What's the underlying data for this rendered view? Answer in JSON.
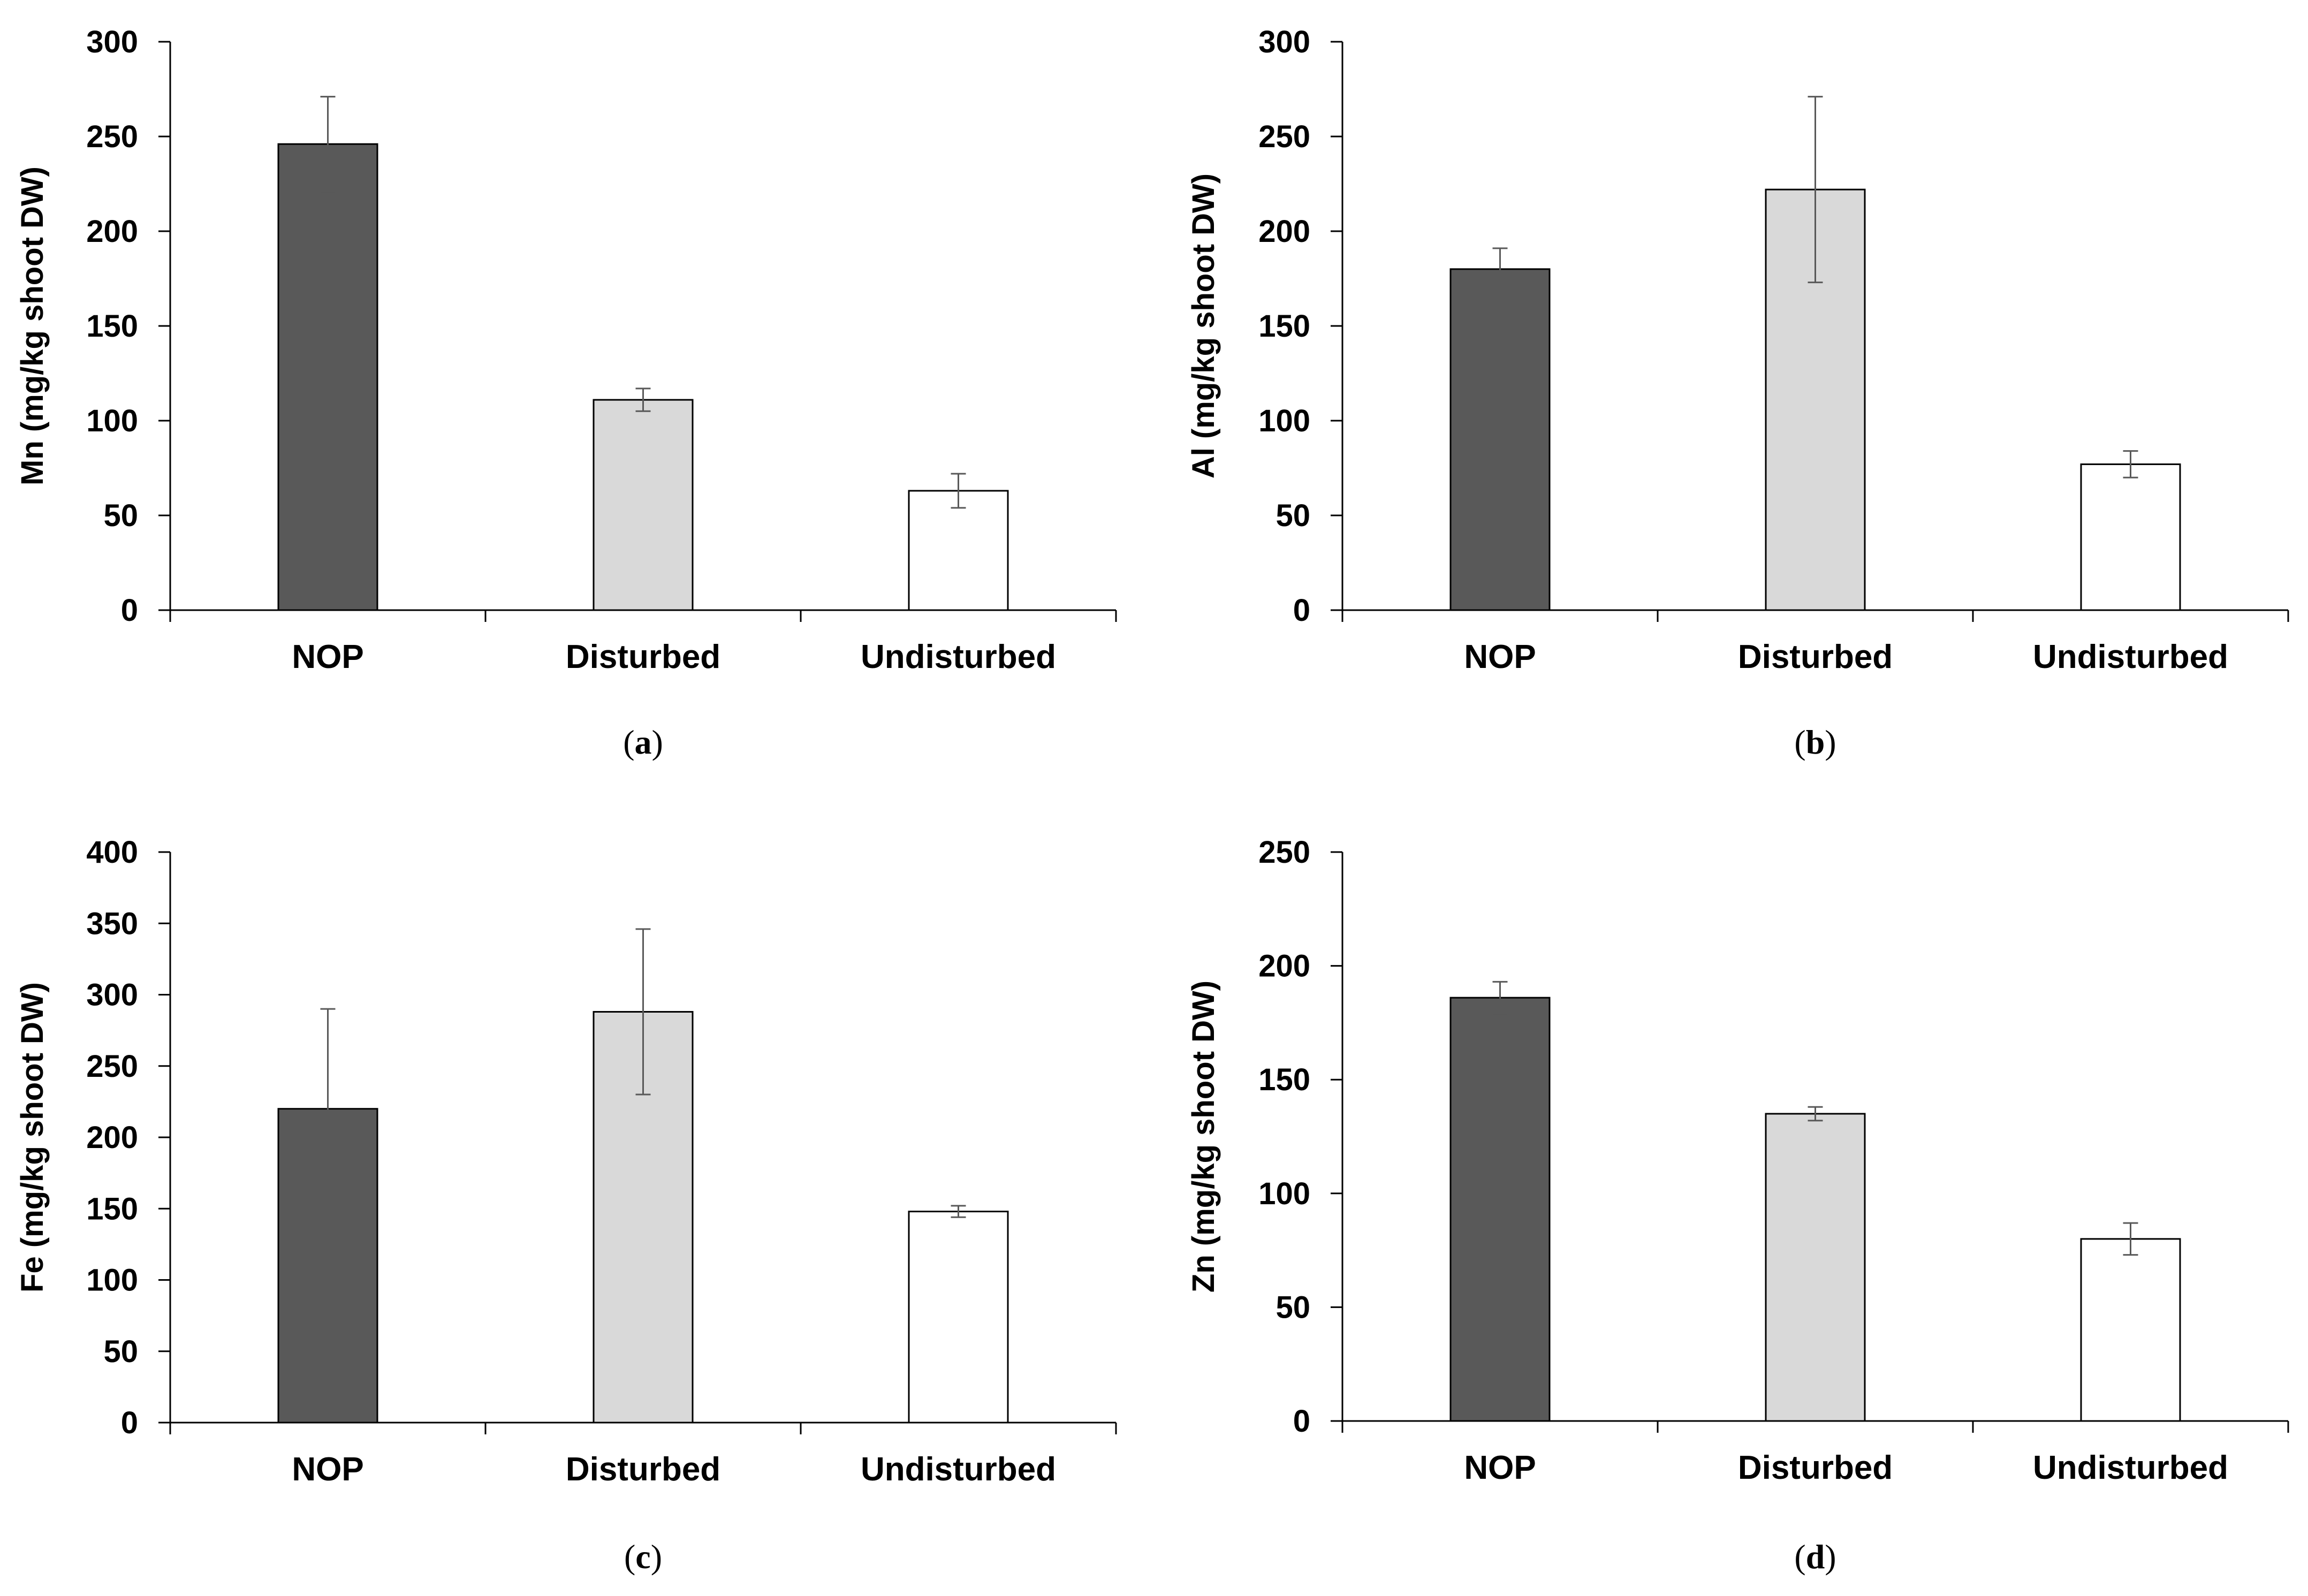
{
  "chart_data": [
    {
      "type": "bar",
      "panel_label": "a",
      "ylabel": "Mn (mg/kg shoot DW)",
      "categories": [
        "NOP",
        "Disturbed",
        "Undisturbed"
      ],
      "values": [
        246,
        111,
        63
      ],
      "errors": [
        25,
        6,
        9
      ],
      "ylim": [
        0,
        300
      ],
      "yticks": [
        0,
        50,
        100,
        150,
        200,
        250,
        300
      ],
      "yticks_text": [
        "0",
        "50",
        "100",
        "150",
        "200",
        "250",
        "300"
      ],
      "bar_colors": [
        "#595959",
        "#d9d9d9",
        "#ffffff"
      ]
    },
    {
      "type": "bar",
      "panel_label": "b",
      "ylabel": "Al (mg/kg shoot DW)",
      "categories": [
        "NOP",
        "Disturbed",
        "Undisturbed"
      ],
      "values": [
        180,
        222,
        77
      ],
      "errors": [
        11,
        49,
        7
      ],
      "ylim": [
        0,
        300
      ],
      "yticks": [
        0,
        50,
        100,
        150,
        200,
        250,
        300
      ],
      "yticks_text": [
        "0",
        "50",
        "100",
        "150",
        "200",
        "250",
        "300"
      ],
      "bar_colors": [
        "#595959",
        "#d9d9d9",
        "#ffffff"
      ]
    },
    {
      "type": "bar",
      "panel_label": "c",
      "ylabel": "Fe (mg/kg shoot DW)",
      "categories": [
        "NOP",
        "Disturbed",
        "Undisturbed"
      ],
      "values": [
        220,
        288,
        148
      ],
      "errors": [
        70,
        58,
        4
      ],
      "ylim": [
        0,
        400
      ],
      "yticks": [
        0,
        50,
        100,
        150,
        200,
        250,
        300,
        350,
        400
      ],
      "yticks_text": [
        "0",
        "50",
        "100",
        "150",
        "200",
        "250",
        "300",
        "350",
        "400"
      ],
      "bar_colors": [
        "#595959",
        "#d9d9d9",
        "#ffffff"
      ]
    },
    {
      "type": "bar",
      "panel_label": "d",
      "ylabel": "Zn (mg/kg shoot DW)",
      "categories": [
        "NOP",
        "Disturbed",
        "Undisturbed"
      ],
      "values": [
        186,
        135,
        80
      ],
      "errors": [
        7,
        3,
        7
      ],
      "ylim": [
        0,
        250
      ],
      "yticks": [
        0,
        50,
        100,
        150,
        200,
        250
      ],
      "yticks_text": [
        "0",
        "50",
        "100",
        "150",
        "200",
        "250"
      ],
      "bar_colors": [
        "#595959",
        "#d9d9d9",
        "#ffffff"
      ]
    }
  ]
}
